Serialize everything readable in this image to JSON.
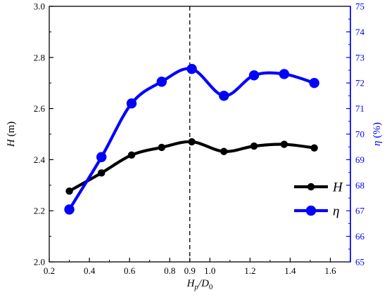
{
  "chart_data": {
    "type": "line",
    "x": [
      0.3,
      0.46,
      0.61,
      0.76,
      0.91,
      1.07,
      1.22,
      1.37,
      1.52
    ],
    "x_ticks": [
      "0.2",
      "0.4",
      "0.6",
      "0.8",
      "0.9",
      "1.0",
      "1.2",
      "1.4",
      "1.6"
    ],
    "x_tick_values": [
      0.2,
      0.4,
      0.6,
      0.8,
      0.9,
      1.0,
      1.2,
      1.4,
      1.6
    ],
    "xlim": [
      0.2,
      1.7
    ],
    "xlabel_parts": [
      "H",
      "p",
      "/D",
      "0"
    ],
    "ylabel_left_symbol": "H",
    "ylabel_left_unit": " (m)",
    "ylim_left": [
      2.0,
      3.0
    ],
    "y_ticks_left": [
      "2.0",
      "2.2",
      "2.4",
      "2.6",
      "2.8",
      "3.0"
    ],
    "ylabel_right_symbol": "η",
    "ylabel_right_unit": " (%)",
    "ylim_right": [
      65,
      75
    ],
    "y_ticks_right": [
      "65",
      "66",
      "67",
      "68",
      "69",
      "70",
      "71",
      "72",
      "73",
      "74",
      "75"
    ],
    "reference_line_x": 0.9,
    "series": [
      {
        "name": "H",
        "axis": "left",
        "color": "#000000",
        "values": [
          2.277,
          2.348,
          2.418,
          2.448,
          2.47,
          2.432,
          2.453,
          2.46,
          2.446
        ]
      },
      {
        "name": "η",
        "axis": "right",
        "color": "#0000ff",
        "values": [
          67.05,
          69.1,
          71.2,
          72.05,
          72.55,
          71.5,
          72.3,
          72.35,
          72.0
        ]
      }
    ],
    "legend_position": "right"
  }
}
